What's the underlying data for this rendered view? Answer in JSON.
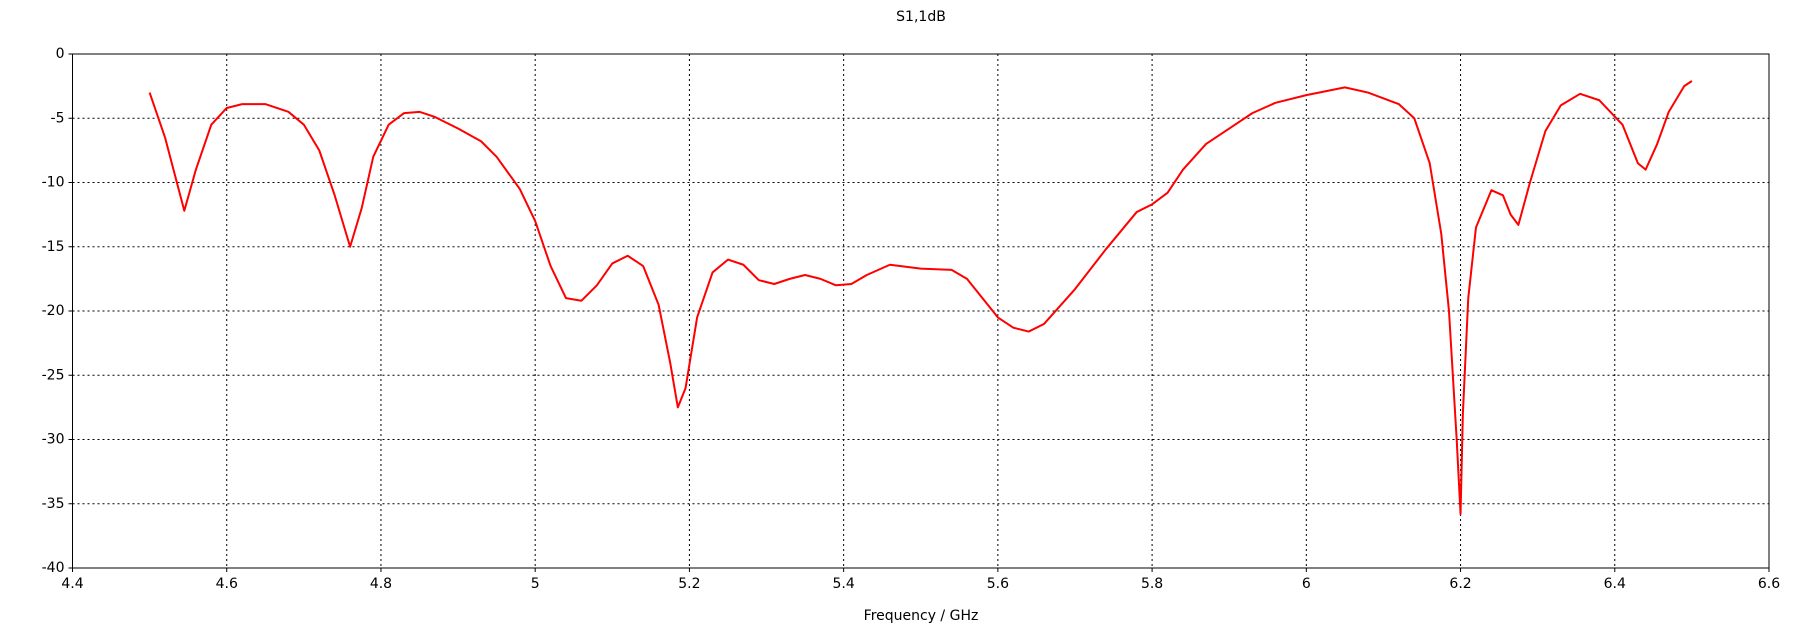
{
  "chart_data": {
    "type": "line",
    "title": "S1,1dB",
    "x_label": "Frequency / GHz",
    "x": [
      4.5,
      4.52,
      4.545,
      4.56,
      4.58,
      4.6,
      4.62,
      4.65,
      4.68,
      4.7,
      4.72,
      4.74,
      4.76,
      4.775,
      4.79,
      4.81,
      4.83,
      4.85,
      4.87,
      4.9,
      4.93,
      4.95,
      4.98,
      5.0,
      5.02,
      5.04,
      5.06,
      5.08,
      5.1,
      5.12,
      5.14,
      5.16,
      5.175,
      5.185,
      5.195,
      5.21,
      5.23,
      5.25,
      5.27,
      5.29,
      5.31,
      5.33,
      5.35,
      5.37,
      5.39,
      5.41,
      5.43,
      5.46,
      5.5,
      5.54,
      5.56,
      5.58,
      5.6,
      5.62,
      5.64,
      5.66,
      5.7,
      5.74,
      5.78,
      5.8,
      5.82,
      5.84,
      5.87,
      5.9,
      5.93,
      5.96,
      6.0,
      6.05,
      6.08,
      6.12,
      6.14,
      6.16,
      6.175,
      6.185,
      6.195,
      6.2,
      6.203,
      6.21,
      6.22,
      6.24,
      6.255,
      6.265,
      6.275,
      6.29,
      6.31,
      6.33,
      6.355,
      6.38,
      6.41,
      6.43,
      6.44,
      6.455,
      6.47,
      6.49,
      6.5
    ],
    "series": [
      {
        "name": "S1,1",
        "color": "#ff0000",
        "values": [
          -3,
          -6.5,
          -12.2,
          -9,
          -5.5,
          -4.2,
          -3.9,
          -3.9,
          -4.5,
          -5.5,
          -7.5,
          -11,
          -15,
          -12,
          -8,
          -5.5,
          -4.6,
          -4.5,
          -4.9,
          -5.8,
          -6.8,
          -8,
          -10.5,
          -13,
          -16.5,
          -19,
          -19.2,
          -18,
          -16.3,
          -15.7,
          -16.5,
          -19.5,
          -24,
          -27.5,
          -26,
          -20.5,
          -17,
          -16,
          -16.4,
          -17.6,
          -17.9,
          -17.5,
          -17.2,
          -17.5,
          -18,
          -17.9,
          -17.2,
          -16.4,
          -16.7,
          -16.8,
          -17.5,
          -19,
          -20.5,
          -21.3,
          -21.6,
          -21,
          -18.3,
          -15.2,
          -12.3,
          -11.7,
          -10.8,
          -9,
          -7,
          -5.8,
          -4.6,
          -3.8,
          -3.2,
          -2.6,
          -3,
          -3.9,
          -5,
          -8.5,
          -14,
          -20,
          -30,
          -35.8,
          -28,
          -19,
          -13.5,
          -10.6,
          -11,
          -12.5,
          -13.3,
          -10,
          -6,
          -4,
          -3.1,
          -3.6,
          -5.5,
          -8.5,
          -9,
          -7,
          -4.5,
          -2.5,
          -2.1
        ]
      }
    ],
    "xlim": [
      4.4,
      6.6
    ],
    "xticks": [
      4.4,
      4.6,
      4.8,
      5,
      5.2,
      5.4,
      5.6,
      5.8,
      6,
      6.2,
      6.4,
      6.6
    ],
    "ylim": [
      -40,
      0
    ],
    "yticks": [
      0,
      -5,
      -10,
      -15,
      -20,
      -25,
      -30,
      -35,
      -40
    ],
    "grid": true
  }
}
